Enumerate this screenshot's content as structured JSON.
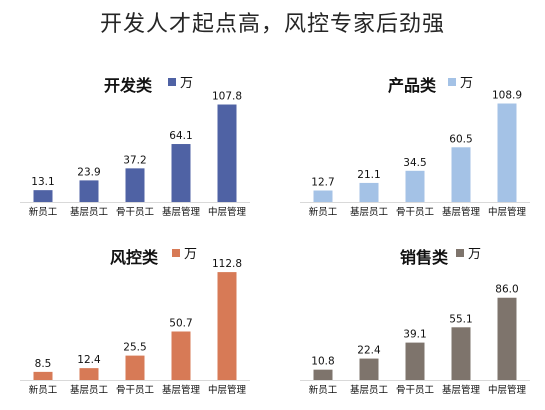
{
  "title": "开发人才起点高，风控专家后劲强",
  "chart_data": [
    {
      "type": "bar",
      "title": "开发类",
      "legend": "万",
      "color": "#4f62a4",
      "categories": [
        "新员工",
        "基层员工",
        "骨干员工",
        "基层管理",
        "中层管理"
      ],
      "values": [
        13.1,
        23.9,
        37.2,
        64.1,
        107.8
      ],
      "value_labels": [
        "13.1",
        "23.9",
        "37.2",
        "64.1",
        "107.8"
      ],
      "ylim": [
        0,
        115
      ]
    },
    {
      "type": "bar",
      "title": "产品类",
      "legend": "万",
      "color": "#a4c2e6",
      "categories": [
        "新员工",
        "基层员工",
        "骨干员工",
        "基层管理",
        "中层管理"
      ],
      "values": [
        12.7,
        21.1,
        34.5,
        60.5,
        108.9
      ],
      "value_labels": [
        "12.7",
        "21.1",
        "34.5",
        "60.5",
        "108.9"
      ],
      "ylim": [
        0,
        115
      ]
    },
    {
      "type": "bar",
      "title": "风控类",
      "legend": "万",
      "color": "#d77a56",
      "categories": [
        "新员工",
        "基层员工",
        "骨干员工",
        "基层管理",
        "中层管理"
      ],
      "values": [
        8.5,
        12.4,
        25.5,
        50.7,
        112.8
      ],
      "value_labels": [
        "8.5",
        "12.4",
        "25.5",
        "50.7",
        "112.8"
      ],
      "ylim": [
        0,
        115
      ]
    },
    {
      "type": "bar",
      "title": "销售类",
      "legend": "万",
      "color": "#7e746c",
      "categories": [
        "新员工",
        "基层员工",
        "骨干员工",
        "基层管理",
        "中层管理"
      ],
      "values": [
        10.8,
        22.4,
        39.1,
        55.1,
        86.0
      ],
      "value_labels": [
        "10.8",
        "22.4",
        "39.1",
        "55.1",
        "86.0"
      ],
      "ylim": [
        0,
        115
      ]
    }
  ]
}
